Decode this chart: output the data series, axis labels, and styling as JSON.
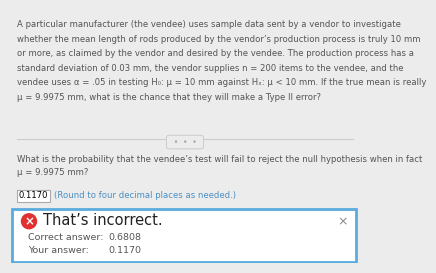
{
  "background_color": "#ececec",
  "top_text_line1": "A particular manufacturer (the vendee) uses sample data sent by a vendor to investigate",
  "top_text_line2": "whether the mean length of rods produced by the vendor’s production process is truly 10 mm",
  "top_text_line3": "or more, as claimed by the vendor and desired by the vendee. The production process has a",
  "top_text_line4": "standard deviation of 0.03 mm, the vendor supplies n = 200 items to the vendee, and the",
  "top_text_line5": "vendee uses α = .05 in testing H₀: μ = 10 mm against Hₓ: μ < 10 mm. If the true mean is really",
  "top_text_line6": "μ = 9.9975 mm, what is the chance that they will make a Type II error?",
  "question_line1": "What is the probability that the vendee’s test will fail to reject the null hypothesis when in fact",
  "question_line2": "μ = 9.9975 mm?",
  "answer_box_value": "0.1170",
  "answer_hint": "(Round to four decimal places as needed.)",
  "panel_bg": "#ffffff",
  "panel_border": "#5aabde",
  "incorrect_icon_color": "#e03030",
  "incorrect_title": "That’s incorrect.",
  "correct_label": "Correct answer:",
  "correct_value": "0.6808",
  "your_label": "Your answer:",
  "your_value": "0.1170",
  "x_button": "×",
  "top_section_bg": "#ececec",
  "text_color_main": "#555555",
  "text_color_dark": "#333333",
  "text_color_blue": "#4a90c4",
  "answer_box_border": "#aaaaaa",
  "divider_color": "#cccccc",
  "dots_color": "#aaaaaa"
}
